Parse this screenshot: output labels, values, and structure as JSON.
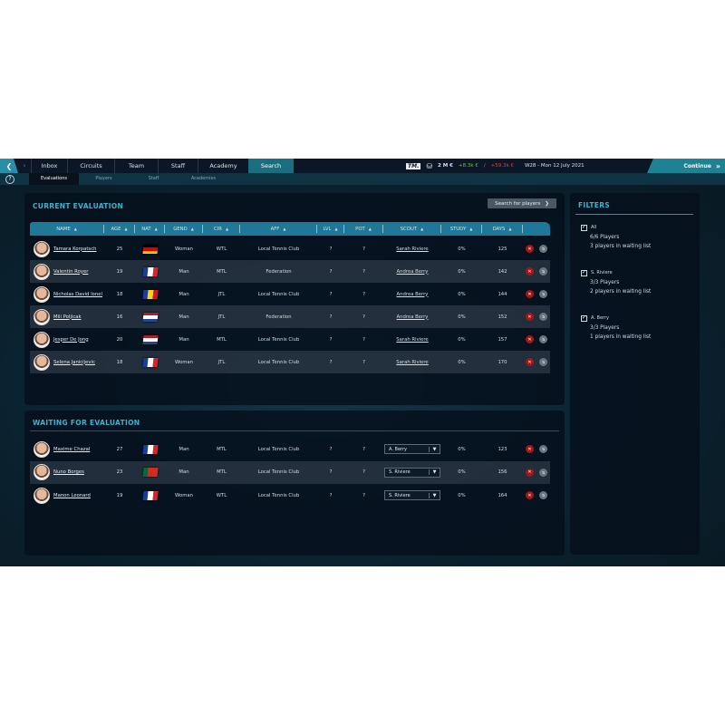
{
  "topbar": {
    "tabs": [
      "Inbox",
      "Circuits",
      "Team",
      "Staff",
      "Academy",
      "Search"
    ],
    "active_tab": "Search",
    "logo": "TM.",
    "money": "2 M €",
    "income": "+8.3k €",
    "expense": "+59.3k €",
    "date": "W28 - Mon 12 July 2021",
    "continue_label": "Continue"
  },
  "subnav": {
    "tabs": [
      "Evaluations",
      "Players",
      "Staff",
      "Academies"
    ],
    "active": "Evaluations"
  },
  "current": {
    "title": "CURRENT EVALUATION",
    "search_button": "Search for players",
    "columns": [
      "NAME",
      "AGE",
      "NAT",
      "GEND",
      "CIR",
      "AFF",
      "LVL",
      "POT",
      "SCOUT",
      "STUDY",
      "DAYS"
    ],
    "rows": [
      {
        "name": "Tamara Korpatsch",
        "age": "25",
        "nat": "germany",
        "gender": "Woman",
        "circuit": "WTL",
        "aff": "Local Tennis Club",
        "lvl": "?",
        "pot": "?",
        "scout": "Sarah Riviere",
        "study": "0%",
        "days": "125"
      },
      {
        "name": "Valentin Royer",
        "age": "19",
        "nat": "france",
        "gender": "Man",
        "circuit": "MTL",
        "aff": "Federation",
        "lvl": "?",
        "pot": "?",
        "scout": "Andrea Berry",
        "study": "0%",
        "days": "142"
      },
      {
        "name": "Nicholas David Ionel",
        "age": "18",
        "nat": "romania",
        "gender": "Man",
        "circuit": "JTL",
        "aff": "Local Tennis Club",
        "lvl": "?",
        "pot": "?",
        "scout": "Andrea Berry",
        "study": "0%",
        "days": "144"
      },
      {
        "name": "Mili Poljicak",
        "age": "16",
        "nat": "netherlands",
        "gender": "Man",
        "circuit": "JTL",
        "aff": "Federation",
        "lvl": "?",
        "pot": "?",
        "scout": "Andrea Berry",
        "study": "0%",
        "days": "152"
      },
      {
        "name": "Jesper De Jong",
        "age": "20",
        "nat": "netherlands",
        "gender": "Man",
        "circuit": "MTL",
        "aff": "Local Tennis Club",
        "lvl": "?",
        "pot": "?",
        "scout": "Sarah Riviere",
        "study": "0%",
        "days": "157"
      },
      {
        "name": "Selena Janicijevic",
        "age": "18",
        "nat": "france",
        "gender": "Woman",
        "circuit": "JTL",
        "aff": "Local Tennis Club",
        "lvl": "?",
        "pot": "?",
        "scout": "Sarah Riviere",
        "study": "0%",
        "days": "170"
      }
    ]
  },
  "waiting": {
    "title": "WAITING FOR EVALUATION",
    "rows": [
      {
        "name": "Maxime Chazal",
        "age": "27",
        "nat": "france",
        "gender": "Man",
        "circuit": "MTL",
        "aff": "Local Tennis Club",
        "lvl": "?",
        "pot": "?",
        "scout": "A. Berry",
        "study": "0%",
        "days": "123"
      },
      {
        "name": "Nuno Borges",
        "age": "23",
        "nat": "portugal",
        "gender": "Man",
        "circuit": "MTL",
        "aff": "Local Tennis Club",
        "lvl": "?",
        "pot": "?",
        "scout": "S. Riviere",
        "study": "0%",
        "days": "156"
      },
      {
        "name": "Manon Leonard",
        "age": "19",
        "nat": "france",
        "gender": "Woman",
        "circuit": "WTL",
        "aff": "Local Tennis Club",
        "lvl": "?",
        "pot": "?",
        "scout": "S. Riviere",
        "study": "0%",
        "days": "164"
      }
    ]
  },
  "filters": {
    "title": "FILTERS",
    "groups": [
      {
        "label": "All",
        "checked": true,
        "players": "6/6 Players",
        "waiting": "3 players in waiting list"
      },
      {
        "label": "S. Riviere",
        "checked": true,
        "players": "3/3 Players",
        "waiting": "2 players in waiting list"
      },
      {
        "label": "A. Berry",
        "checked": true,
        "players": "3/3 Players",
        "waiting": "1 players in waiting list"
      }
    ]
  },
  "colors": {
    "accent": "#1f7897",
    "title": "#3fb2cf",
    "remove": "#a01818",
    "income": "#6fc24a",
    "expense": "#e04040"
  },
  "icons": {
    "remove": "x-icon",
    "swap": "swap-icon",
    "sort": "sort-up-icon",
    "back": "chevron-left-icon",
    "forward": "chevron-right-icon",
    "continue": "double-chevron-right-icon",
    "help": "question-icon",
    "money": "money-stack-icon"
  }
}
